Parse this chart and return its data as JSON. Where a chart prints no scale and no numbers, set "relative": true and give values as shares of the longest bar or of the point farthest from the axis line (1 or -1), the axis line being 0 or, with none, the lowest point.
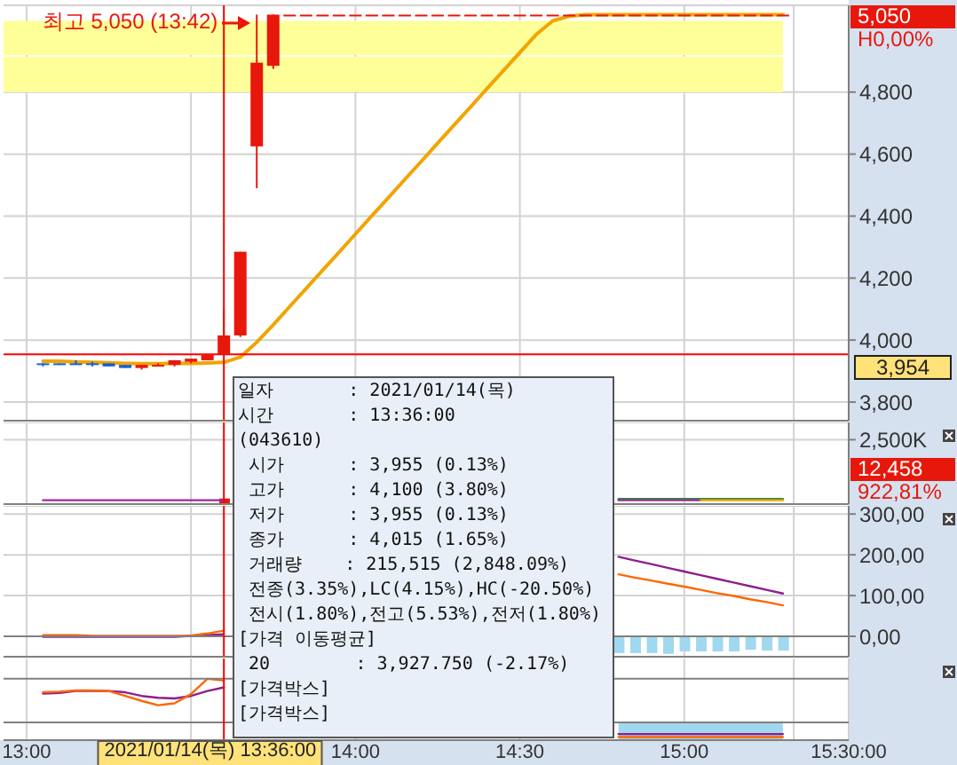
{
  "chart_data": [
    {
      "type": "candlestick",
      "x": [
        13.05,
        13.1,
        13.15,
        13.2,
        13.25,
        13.3,
        13.35,
        13.4,
        13.45,
        13.5,
        13.55,
        13.6,
        13.65,
        13.7,
        13.75,
        13.8,
        13.85,
        13.9,
        13.95,
        14,
        14.05,
        14.1,
        14.15,
        14.2,
        14.25,
        14.3,
        14.35,
        14.4,
        14.45,
        14.5,
        14.55,
        14.6,
        14.65,
        14.7,
        14.75,
        14.8,
        14.85,
        14.9,
        14.95,
        15,
        15.05,
        15.1,
        15.15,
        15.2,
        15.25,
        15.3
      ],
      "ohlc": [
        [
          3925,
          3925,
          3915,
          3920
        ],
        [
          3925,
          3925,
          3920,
          3920
        ],
        [
          3925,
          3935,
          3920,
          3920
        ],
        [
          3925,
          3930,
          3915,
          3920
        ],
        [
          3925,
          3925,
          3915,
          3915
        ],
        [
          3920,
          3920,
          3910,
          3910
        ],
        [
          3910,
          3920,
          3905,
          3920
        ],
        [
          3915,
          3925,
          3915,
          3920
        ],
        [
          3920,
          3935,
          3915,
          3935
        ],
        [
          3930,
          3940,
          3925,
          3940
        ],
        [
          3935,
          3955,
          3935,
          3955
        ],
        [
          3955,
          4100,
          3955,
          4015
        ],
        [
          4015,
          4285,
          4010,
          4285
        ],
        [
          4625,
          5050,
          4490,
          4895
        ],
        [
          4885,
          5050,
          4875,
          5050
        ],
        [
          5050,
          5050,
          5050,
          5050
        ],
        [
          5050,
          5050,
          5050,
          5050
        ],
        [
          5050,
          5050,
          5050,
          5050
        ],
        [
          5050,
          5050,
          5050,
          5050
        ],
        [
          5050,
          5050,
          5050,
          5050
        ],
        [
          5050,
          5050,
          5050,
          5050
        ],
        [
          5050,
          5050,
          5050,
          5050
        ],
        [
          5050,
          5050,
          5050,
          5050
        ],
        [
          5050,
          5050,
          5050,
          5050
        ],
        [
          5050,
          5050,
          5050,
          5050
        ],
        [
          5050,
          5050,
          5050,
          5050
        ],
        [
          5050,
          5050,
          5050,
          5050
        ],
        [
          5050,
          5050,
          5050,
          5050
        ],
        [
          5050,
          5050,
          5050,
          5050
        ],
        [
          5050,
          5050,
          5050,
          5050
        ],
        [
          5050,
          5050,
          5050,
          5050
        ],
        [
          5050,
          5050,
          5050,
          5050
        ],
        [
          5050,
          5050,
          5050,
          5050
        ],
        [
          5050,
          5050,
          5050,
          5050
        ],
        [
          5050,
          5050,
          5050,
          5050
        ],
        [
          5050,
          5050,
          5050,
          5050
        ],
        [
          5050,
          5050,
          5050,
          5050
        ],
        [
          5050,
          5050,
          5050,
          5050
        ],
        [
          5050,
          5050,
          5050,
          5050
        ],
        [
          5050,
          5050,
          5050,
          5050
        ],
        [
          5050,
          5050,
          5050,
          5050
        ],
        [
          5050,
          5050,
          5050,
          5050
        ],
        [
          5050,
          5050,
          5050,
          5050
        ],
        [
          5050,
          5050,
          5050,
          5050
        ],
        [
          5050,
          5050,
          5050,
          5050
        ],
        [
          5050,
          5050,
          5050,
          5050
        ]
      ],
      "colors": [
        "#1a5fd6",
        "#1a5fd6",
        "#1a5fd6",
        "#1a5fd6",
        "#1a5fd6",
        "#1a5fd6",
        "#e8170c",
        "#e8170c",
        "#e8170c",
        "#e8170c",
        "#e8170c",
        "#e8170c",
        "#e8170c",
        "#e8170c",
        "#e8170c",
        "#e8170c",
        "#e8170c",
        "#e8170c",
        "#e8170c",
        "#e8170c",
        "#e8170c",
        "#e8170c",
        "#e8170c",
        "#e8170c",
        "#e8170c",
        "#e8170c",
        "#e8170c",
        "#e8170c",
        "#e8170c",
        "#e8170c",
        "#e8170c",
        "#e8170c",
        "#e8170c",
        "#e8170c",
        "#e8170c",
        "#e8170c",
        "#e8170c",
        "#e8170c",
        "#e8170c",
        "#e8170c",
        "#e8170c",
        "#e8170c",
        "#e8170c",
        "#e8170c",
        "#e8170c",
        "#e8170c"
      ],
      "series": [
        {
          "type": "line",
          "color": "#f0a500",
          "values": [
            3932,
            3932,
            3930,
            3928,
            3927,
            3925,
            3924,
            3924,
            3925,
            3925,
            3926,
            3928,
            3945,
            3993,
            4049,
            4108,
            4166,
            4225,
            4283,
            4342,
            4401,
            4459,
            4518,
            4576,
            4635,
            4694,
            4752,
            4811,
            4869,
            4928,
            4986,
            5030,
            5045,
            5050,
            5050,
            5050,
            5050,
            5050,
            5050,
            5050,
            5050,
            5050,
            5050,
            5050,
            5050,
            5050
          ]
        }
      ],
      "xlim": [
        12.93,
        15.5
      ],
      "xticks": [
        13,
        13.5,
        14,
        14.5,
        15,
        15.333,
        15.5
      ],
      "ylim": [
        3740,
        5080
      ],
      "yticks": [
        {
          "value": 3800,
          "label": "3,800"
        },
        {
          "value": 4000,
          "label": "4,000"
        },
        {
          "value": 4200,
          "label": "4,200"
        },
        {
          "value": 4400,
          "label": "4,400"
        },
        {
          "value": 4600,
          "label": "4,600"
        },
        {
          "value": 4800,
          "label": "4,800"
        }
      ],
      "grid": true,
      "tick_labels": "y",
      "bands": [
        {
          "axis": "y",
          "from": 4920,
          "to": 5030,
          "color": "#ffff99"
        },
        {
          "axis": "y",
          "from": 4800,
          "to": 4915,
          "color": "#ffff99"
        }
      ],
      "ref_lines": [
        {
          "axis": "y",
          "value": 3954,
          "label": "3,954",
          "color": "#ff0000"
        },
        {
          "axis": "x",
          "value": 13.6,
          "color": "#ff0000"
        }
      ],
      "annotations": [
        {
          "text": "최고 5,050 (13:42)",
          "x": 13.7,
          "y": 5050
        },
        "5,050",
        "H0,00%"
      ]
    },
    {
      "type": "bar",
      "x": [
        13.05,
        13.1,
        13.15,
        13.2,
        13.25,
        13.3,
        13.35,
        13.4,
        13.45,
        13.5,
        13.55,
        13.6,
        13.65,
        13.7,
        13.75,
        13.8,
        13.85,
        13.9,
        13.95,
        14,
        14.05,
        14.1,
        14.15,
        14.2,
        14.25,
        14.3,
        14.35,
        14.4,
        14.45,
        14.5,
        14.55,
        14.6,
        14.65,
        14.7,
        14.75,
        14.8,
        14.85,
        14.9,
        14.95,
        15,
        15.05,
        15.1,
        15.15,
        15.2,
        15.25,
        15.3
      ],
      "series": [
        {
          "color": "#e8170c",
          "values": [
            10000,
            10000,
            10000,
            10000,
            10000,
            10000,
            10000,
            10000,
            10000,
            10000,
            10000,
            215515,
            null,
            null,
            null,
            null,
            null,
            null,
            null,
            null,
            null,
            null,
            null,
            null,
            null,
            null,
            null,
            null,
            null,
            null,
            null,
            null,
            null,
            null,
            null,
            10000,
            10000,
            10000,
            10000,
            10000,
            10000,
            10000,
            10000,
            10000,
            10000,
            12458
          ]
        },
        {
          "type": "line",
          "color": "#2e8b3a",
          "values": [
            null,
            null,
            null,
            null,
            null,
            null,
            null,
            null,
            null,
            null,
            null,
            null,
            null,
            null,
            null,
            null,
            null,
            null,
            null,
            null,
            null,
            null,
            null,
            null,
            null,
            null,
            null,
            null,
            null,
            null,
            null,
            null,
            null,
            null,
            null,
            200000,
            200000,
            200000,
            200000,
            200000,
            200000,
            200000,
            200000,
            200000,
            200000,
            200000
          ]
        },
        {
          "type": "line",
          "color": "#9b2a9b",
          "values": [
            150000,
            150000,
            150000,
            150000,
            150000,
            150000,
            150000,
            150000,
            150000,
            150000,
            150000,
            150000,
            null,
            null,
            null,
            null,
            null,
            null,
            null,
            null,
            null,
            null,
            null,
            null,
            null,
            null,
            null,
            null,
            null,
            null,
            null,
            null,
            null,
            null,
            null,
            150000,
            150000,
            150000,
            150000,
            150000,
            150000,
            null,
            null,
            null,
            null,
            null
          ]
        },
        {
          "type": "line",
          "color": "#f0a500",
          "values": [
            null,
            null,
            null,
            null,
            null,
            null,
            null,
            null,
            null,
            null,
            null,
            null,
            null,
            null,
            null,
            null,
            null,
            null,
            null,
            null,
            null,
            null,
            null,
            null,
            null,
            null,
            null,
            null,
            null,
            null,
            null,
            null,
            null,
            null,
            null,
            null,
            null,
            null,
            null,
            null,
            150000,
            150000,
            150000,
            150000,
            150000,
            150000
          ]
        }
      ],
      "xlim": [
        12.93,
        15.5
      ],
      "xticks": [
        13,
        13.5,
        14,
        14.5,
        15,
        15.333,
        15.5
      ],
      "ylim": [
        0,
        3170000
      ],
      "yticks": [
        {
          "value": 2500000,
          "label": "2,500K"
        }
      ],
      "grid": true,
      "tick_labels": "y",
      "ref_lines": [
        {
          "axis": "x",
          "value": 13.6,
          "color": "#ff0000"
        }
      ],
      "annotations": [
        "12,458",
        "922,81%"
      ]
    },
    {
      "type": "line",
      "x": [
        13.05,
        13.1,
        13.15,
        13.2,
        13.25,
        13.3,
        13.35,
        13.4,
        13.45,
        13.5,
        13.55,
        13.6,
        13.65,
        13.7,
        13.75,
        13.8,
        13.85,
        13.9,
        13.95,
        14,
        14.05,
        14.1,
        14.15,
        14.2,
        14.25,
        14.3,
        14.35,
        14.4,
        14.45,
        14.5,
        14.55,
        14.6,
        14.65,
        14.7,
        14.75,
        14.8,
        14.85,
        14.9,
        14.95,
        15,
        15.05,
        15.1,
        15.15,
        15.2,
        15.25,
        15.3
      ],
      "series": [
        {
          "type": "bar",
          "color": "#a0d8ef",
          "values": [
            null,
            null,
            null,
            null,
            null,
            null,
            null,
            null,
            null,
            null,
            null,
            null,
            null,
            null,
            null,
            null,
            null,
            null,
            null,
            null,
            null,
            null,
            null,
            null,
            null,
            null,
            null,
            null,
            null,
            null,
            null,
            null,
            null,
            null,
            null,
            -41,
            -41,
            -41,
            -43,
            -37,
            -37,
            -37,
            -37,
            -33,
            -35,
            -35
          ]
        },
        {
          "color": "#8e1e8e",
          "values": [
            -1,
            -1,
            -1,
            -1,
            -1,
            -1,
            -1,
            -1,
            -1,
            1,
            3,
            5,
            null,
            null,
            null,
            null,
            null,
            null,
            null,
            null,
            null,
            null,
            null,
            null,
            null,
            null,
            null,
            null,
            null,
            null,
            null,
            null,
            null,
            null,
            null,
            195,
            186,
            177,
            168,
            159,
            150,
            141,
            132,
            123,
            114,
            105
          ]
        },
        {
          "color": "#ff6600",
          "values": [
            3,
            3,
            3,
            1,
            1,
            1,
            1,
            1,
            1,
            2,
            7,
            14,
            null,
            null,
            null,
            null,
            null,
            null,
            null,
            null,
            null,
            null,
            null,
            null,
            null,
            null,
            null,
            null,
            null,
            null,
            null,
            null,
            null,
            null,
            null,
            152,
            144,
            137,
            129,
            122,
            114,
            106,
            99,
            91,
            84,
            76
          ]
        }
      ],
      "xlim": [
        12.93,
        15.5
      ],
      "xticks": [
        13,
        13.5,
        14,
        14.5,
        15,
        15.333,
        15.5
      ],
      "ylim": [
        -50,
        320
      ],
      "yticks": [
        {
          "value": 0,
          "label": "0,00"
        },
        {
          "value": 100,
          "label": "100,00"
        },
        {
          "value": 200,
          "label": "200,00"
        },
        {
          "value": 300,
          "label": "300,00"
        }
      ],
      "grid": true,
      "tick_labels": "y",
      "ref_lines": [
        {
          "axis": "y",
          "value": 0,
          "color": "#808080"
        },
        {
          "axis": "x",
          "value": 13.6,
          "color": "#ff0000"
        }
      ]
    },
    {
      "type": "line",
      "relative": true,
      "x": [
        13.05,
        13.1,
        13.15,
        13.2,
        13.25,
        13.3,
        13.35,
        13.4,
        13.45,
        13.5,
        13.55,
        13.6,
        13.65,
        13.7,
        13.75,
        13.8,
        13.85,
        13.9,
        13.95,
        14,
        14.05,
        14.1,
        14.15,
        14.2,
        14.25,
        14.3,
        14.35,
        14.4,
        14.45,
        14.5,
        14.55,
        14.6,
        14.65,
        14.7,
        14.75,
        14.8,
        14.85,
        14.9,
        14.95,
        15,
        15.05,
        15.1,
        15.15,
        15.2,
        15.25,
        15.3
      ],
      "series": [
        {
          "type": "area",
          "color": "#a0d8ef",
          "values": [
            null,
            null,
            null,
            null,
            null,
            null,
            null,
            null,
            null,
            null,
            null,
            null,
            null,
            null,
            null,
            null,
            null,
            null,
            null,
            null,
            null,
            null,
            null,
            null,
            null,
            null,
            null,
            null,
            null,
            null,
            null,
            null,
            null,
            null,
            null,
            0.29,
            0.29,
            0.29,
            0.29,
            0.29,
            0.29,
            0.29,
            0.29,
            0.29,
            0.29,
            0.29
          ]
        },
        {
          "color": "#8e1e8e",
          "values": [
            0.76,
            0.77,
            0.8,
            0.8,
            0.8,
            0.78,
            0.72,
            0.69,
            0.68,
            0.72,
            0.8,
            0.86,
            null,
            null,
            null,
            null,
            null,
            null,
            null,
            null,
            null,
            null,
            null,
            null,
            null,
            null,
            null,
            null,
            null,
            null,
            null,
            null,
            null,
            null,
            null,
            0.1,
            0.1,
            0.1,
            0.1,
            0.1,
            0.1,
            0.1,
            0.1,
            0.1,
            0.1,
            0.1
          ]
        },
        {
          "color": "#ff6600",
          "values": [
            0.78,
            0.79,
            0.81,
            0.81,
            0.8,
            0.72,
            0.64,
            0.57,
            0.6,
            0.75,
            1,
            0.97,
            null,
            null,
            null,
            null,
            null,
            null,
            null,
            null,
            null,
            null,
            null,
            null,
            null,
            null,
            null,
            null,
            null,
            null,
            null,
            null,
            null,
            null,
            null,
            0.05,
            0.05,
            0.05,
            0.05,
            0.05,
            0.05,
            0.05,
            0.05,
            0.05,
            0.05,
            0.05
          ]
        }
      ],
      "xlim": [
        12.93,
        15.5
      ],
      "xticks": [
        {
          "value": 13,
          "label": "13:00"
        },
        {
          "value": 13.5,
          "label": null
        },
        {
          "value": 14,
          "label": "14:00"
        },
        {
          "value": 14.5,
          "label": "14:30"
        },
        {
          "value": 15,
          "label": "15:00"
        },
        {
          "value": 15.333,
          "label": null
        },
        {
          "value": 15.5,
          "label": "15:30:00"
        }
      ],
      "grid": "x",
      "tick_labels": "x",
      "ref_lines": [
        {
          "axis": "y",
          "value": 1,
          "color": "#808080"
        },
        {
          "axis": "y",
          "value": 0.29,
          "color": "#808080"
        },
        {
          "axis": "x",
          "value": 13.6,
          "color": "#ff0000",
          "label": "2021/01/14(목) 13:36:00"
        }
      ]
    },
    {
      "type": "other",
      "annotations": [
        "일자       : 2021/01/14(목)",
        "시간       : 13:36:00",
        "(043610)",
        " 시가      : 3,955 (0.13%)",
        " 고가      : 4,100 (3.80%)",
        " 저가      : 3,955 (0.13%)",
        " 종가      : 4,015 (1.65%)",
        " 거래량    : 215,515 (2,848.09%)",
        " 전종(3.35%),LC(4.15%),HC(-20.50%)",
        " 전시(1.80%),전고(5.53%),전저(1.80%)",
        "[가격 이동평균]",
        " 20        : 3,927.750 (-2.17%)",
        "[가격박스]",
        "[가격박스]"
      ]
    }
  ]
}
